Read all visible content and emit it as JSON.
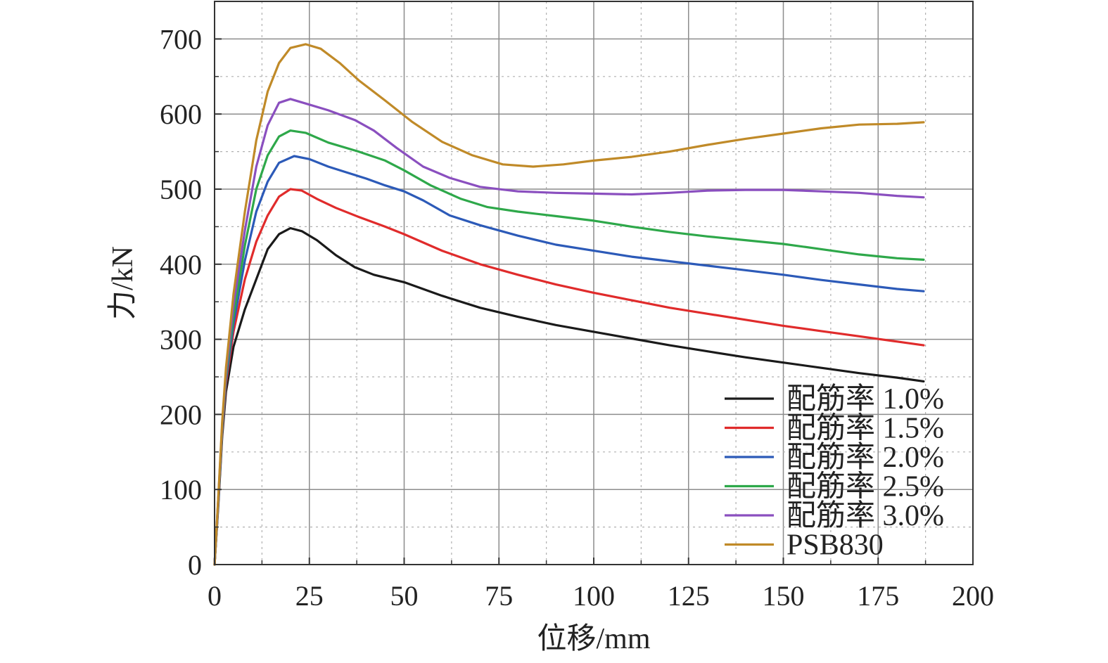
{
  "chart_data": {
    "type": "line",
    "xlabel": "位移/mm",
    "ylabel": "力/kN",
    "xlim": [
      0,
      200
    ],
    "ylim": [
      0,
      750
    ],
    "xticks": [
      0,
      25,
      50,
      75,
      100,
      125,
      150,
      175,
      200
    ],
    "yticks": [
      0,
      100,
      200,
      300,
      400,
      500,
      600,
      700
    ],
    "x_tick_labels": [
      "0",
      "25",
      "50",
      "75",
      "100",
      "125",
      "150",
      "175",
      "200"
    ],
    "y_tick_labels": [
      "0",
      "100",
      "200",
      "300",
      "400",
      "500",
      "600",
      "700"
    ],
    "grid": true,
    "legend_position": "bottom-right",
    "series": [
      {
        "name": "配筋率 1.0%",
        "color": "#1a1a1a",
        "points": [
          [
            0,
            0
          ],
          [
            1,
            80
          ],
          [
            2,
            170
          ],
          [
            3,
            230
          ],
          [
            5,
            290
          ],
          [
            8,
            340
          ],
          [
            11,
            380
          ],
          [
            14,
            420
          ],
          [
            17,
            440
          ],
          [
            20,
            448
          ],
          [
            23,
            444
          ],
          [
            27,
            432
          ],
          [
            32,
            412
          ],
          [
            37,
            396
          ],
          [
            42,
            386
          ],
          [
            50,
            376
          ],
          [
            60,
            358
          ],
          [
            70,
            342
          ],
          [
            80,
            330
          ],
          [
            90,
            319
          ],
          [
            100,
            310
          ],
          [
            110,
            301
          ],
          [
            120,
            292
          ],
          [
            130,
            284
          ],
          [
            140,
            276
          ],
          [
            150,
            269
          ],
          [
            160,
            262
          ],
          [
            170,
            255
          ],
          [
            180,
            249
          ],
          [
            187,
            244
          ]
        ]
      },
      {
        "name": "配筋率 1.5%",
        "color": "#e02b2b",
        "points": [
          [
            0,
            0
          ],
          [
            1,
            85
          ],
          [
            2,
            175
          ],
          [
            3,
            240
          ],
          [
            5,
            310
          ],
          [
            8,
            380
          ],
          [
            11,
            430
          ],
          [
            14,
            465
          ],
          [
            17,
            490
          ],
          [
            20,
            500
          ],
          [
            23,
            498
          ],
          [
            27,
            487
          ],
          [
            32,
            475
          ],
          [
            38,
            463
          ],
          [
            45,
            450
          ],
          [
            50,
            440
          ],
          [
            60,
            418
          ],
          [
            70,
            400
          ],
          [
            80,
            386
          ],
          [
            90,
            373
          ],
          [
            100,
            362
          ],
          [
            110,
            352
          ],
          [
            120,
            342
          ],
          [
            130,
            334
          ],
          [
            140,
            326
          ],
          [
            150,
            318
          ],
          [
            160,
            311
          ],
          [
            170,
            304
          ],
          [
            180,
            297
          ],
          [
            187,
            292
          ]
        ]
      },
      {
        "name": "配筋率 2.0%",
        "color": "#2c5ab8",
        "points": [
          [
            0,
            0
          ],
          [
            1,
            85
          ],
          [
            2,
            178
          ],
          [
            3,
            245
          ],
          [
            5,
            320
          ],
          [
            8,
            405
          ],
          [
            11,
            470
          ],
          [
            14,
            510
          ],
          [
            17,
            535
          ],
          [
            21,
            544
          ],
          [
            25,
            540
          ],
          [
            30,
            530
          ],
          [
            35,
            522
          ],
          [
            40,
            514
          ],
          [
            45,
            505
          ],
          [
            50,
            497
          ],
          [
            55,
            485
          ],
          [
            62,
            465
          ],
          [
            70,
            452
          ],
          [
            80,
            438
          ],
          [
            90,
            426
          ],
          [
            100,
            418
          ],
          [
            110,
            410
          ],
          [
            120,
            404
          ],
          [
            130,
            398
          ],
          [
            140,
            392
          ],
          [
            150,
            386
          ],
          [
            160,
            379
          ],
          [
            170,
            373
          ],
          [
            180,
            367
          ],
          [
            187,
            364
          ]
        ]
      },
      {
        "name": "配筋率 2.5%",
        "color": "#2ea84a",
        "points": [
          [
            0,
            0
          ],
          [
            1,
            88
          ],
          [
            2,
            180
          ],
          [
            3,
            250
          ],
          [
            5,
            330
          ],
          [
            8,
            425
          ],
          [
            11,
            500
          ],
          [
            14,
            545
          ],
          [
            17,
            570
          ],
          [
            20,
            578
          ],
          [
            24,
            575
          ],
          [
            30,
            562
          ],
          [
            38,
            550
          ],
          [
            45,
            538
          ],
          [
            50,
            525
          ],
          [
            57,
            505
          ],
          [
            65,
            487
          ],
          [
            72,
            476
          ],
          [
            80,
            470
          ],
          [
            90,
            464
          ],
          [
            100,
            458
          ],
          [
            110,
            450
          ],
          [
            120,
            443
          ],
          [
            130,
            437
          ],
          [
            140,
            432
          ],
          [
            150,
            427
          ],
          [
            160,
            420
          ],
          [
            170,
            413
          ],
          [
            180,
            408
          ],
          [
            187,
            406
          ]
        ]
      },
      {
        "name": "配筋率 3.0%",
        "color": "#8a4fbf",
        "points": [
          [
            0,
            0
          ],
          [
            1,
            90
          ],
          [
            2,
            185
          ],
          [
            3,
            255
          ],
          [
            5,
            345
          ],
          [
            8,
            445
          ],
          [
            11,
            530
          ],
          [
            14,
            585
          ],
          [
            17,
            615
          ],
          [
            20,
            620
          ],
          [
            24,
            614
          ],
          [
            30,
            605
          ],
          [
            37,
            592
          ],
          [
            42,
            578
          ],
          [
            48,
            555
          ],
          [
            55,
            530
          ],
          [
            62,
            515
          ],
          [
            70,
            503
          ],
          [
            80,
            497
          ],
          [
            90,
            495
          ],
          [
            100,
            494
          ],
          [
            110,
            493
          ],
          [
            120,
            495
          ],
          [
            130,
            498
          ],
          [
            140,
            499
          ],
          [
            150,
            499
          ],
          [
            160,
            497
          ],
          [
            170,
            495
          ],
          [
            180,
            491
          ],
          [
            187,
            489
          ]
        ]
      },
      {
        "name": "PSB830",
        "color": "#c08a28",
        "points": [
          [
            0,
            0
          ],
          [
            1,
            92
          ],
          [
            2,
            190
          ],
          [
            3,
            262
          ],
          [
            5,
            360
          ],
          [
            8,
            470
          ],
          [
            11,
            565
          ],
          [
            14,
            630
          ],
          [
            17,
            668
          ],
          [
            20,
            688
          ],
          [
            24,
            693
          ],
          [
            28,
            687
          ],
          [
            33,
            668
          ],
          [
            38,
            645
          ],
          [
            45,
            618
          ],
          [
            52,
            590
          ],
          [
            60,
            563
          ],
          [
            68,
            545
          ],
          [
            76,
            533
          ],
          [
            84,
            530
          ],
          [
            92,
            533
          ],
          [
            100,
            538
          ],
          [
            110,
            543
          ],
          [
            120,
            550
          ],
          [
            130,
            559
          ],
          [
            140,
            567
          ],
          [
            150,
            574
          ],
          [
            160,
            581
          ],
          [
            170,
            586
          ],
          [
            180,
            587
          ],
          [
            187,
            589
          ]
        ]
      }
    ]
  }
}
